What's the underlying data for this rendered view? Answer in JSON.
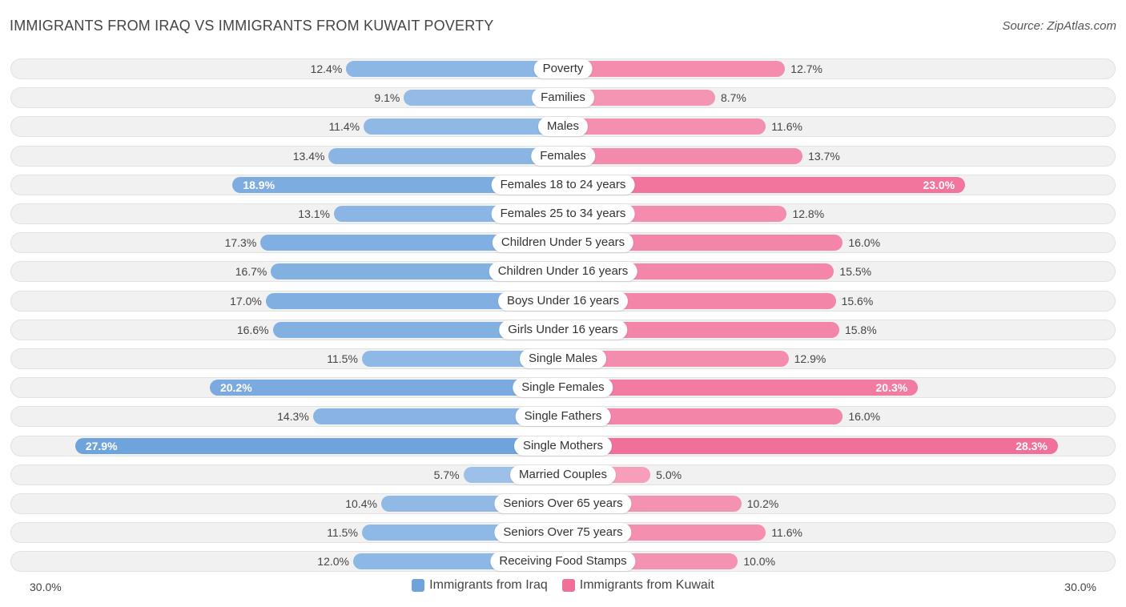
{
  "title": "IMMIGRANTS FROM IRAQ VS IMMIGRANTS FROM KUWAIT POVERTY",
  "source": "Source: ZipAtlas.com",
  "colors": {
    "iraq": "#6fa3dc",
    "iraq_light": "#a9c9ec",
    "kuwait": "#f07099",
    "kuwait_light": "#f7a9c2"
  },
  "axis": {
    "left_label": "30.0%",
    "right_label": "30.0%"
  },
  "legend": {
    "iraq": "Immigrants from Iraq",
    "kuwait": "Immigrants from Kuwait"
  },
  "chart_data": {
    "type": "bar",
    "orientation": "diverging-horizontal",
    "title": "IMMIGRANTS FROM IRAQ VS IMMIGRANTS FROM KUWAIT POVERTY",
    "xlim": [
      0,
      30
    ],
    "unit": "%",
    "categories": [
      "Poverty",
      "Families",
      "Males",
      "Females",
      "Females 18 to 24 years",
      "Females 25 to 34 years",
      "Children Under 5 years",
      "Children Under 16 years",
      "Boys Under 16 years",
      "Girls Under 16 years",
      "Single Males",
      "Single Females",
      "Single Fathers",
      "Single Mothers",
      "Married Couples",
      "Seniors Over 65 years",
      "Seniors Over 75 years",
      "Receiving Food Stamps"
    ],
    "series": [
      {
        "name": "Immigrants from Iraq",
        "values": [
          12.4,
          9.1,
          11.4,
          13.4,
          18.9,
          13.1,
          17.3,
          16.7,
          17.0,
          16.6,
          11.5,
          20.2,
          14.3,
          27.9,
          5.7,
          10.4,
          11.5,
          12.0
        ],
        "labels": [
          "12.4%",
          "9.1%",
          "11.4%",
          "13.4%",
          "18.9%",
          "13.1%",
          "17.3%",
          "16.7%",
          "17.0%",
          "16.6%",
          "11.5%",
          "20.2%",
          "14.3%",
          "27.9%",
          "5.7%",
          "10.4%",
          "11.5%",
          "12.0%"
        ]
      },
      {
        "name": "Immigrants from Kuwait",
        "values": [
          12.7,
          8.7,
          11.6,
          13.7,
          23.0,
          12.8,
          16.0,
          15.5,
          15.6,
          15.8,
          12.9,
          20.3,
          16.0,
          28.3,
          5.0,
          10.2,
          11.6,
          10.0
        ],
        "labels": [
          "12.7%",
          "8.7%",
          "11.6%",
          "13.7%",
          "23.0%",
          "12.8%",
          "16.0%",
          "15.5%",
          "15.6%",
          "15.8%",
          "12.9%",
          "20.3%",
          "16.0%",
          "28.3%",
          "5.0%",
          "10.2%",
          "11.6%",
          "10.0%"
        ]
      }
    ]
  }
}
